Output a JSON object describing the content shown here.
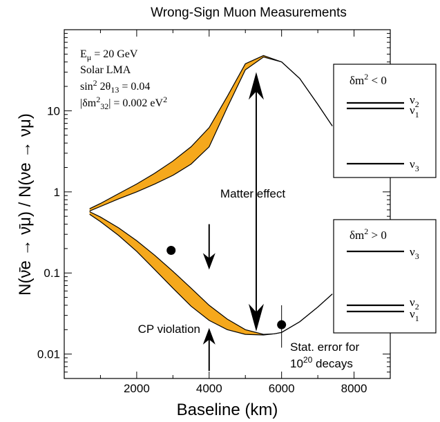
{
  "chart_data": {
    "type": "line",
    "title": "Wrong-Sign Muon Measurements",
    "xlabel": "Baseline  (km)",
    "ylabel": "N(ν̄e → ν̄μ) / N(νe → νμ)",
    "xlim": [
      0,
      9000
    ],
    "ylim": [
      0.005,
      100
    ],
    "y_scale": "log",
    "x_ticks": [
      "2000",
      "4000",
      "6000",
      "8000"
    ],
    "y_ticks": [
      "0.01",
      "0.1",
      "1",
      "10"
    ],
    "grid": false,
    "band_color": "#f5a81c",
    "series": [
      {
        "x": [
          700,
          1000,
          1500,
          2000,
          2500,
          3000,
          3500,
          4000,
          4500,
          5000,
          5500,
          6000,
          6500,
          7000,
          7400
        ],
        "values": [
          0.62,
          0.72,
          0.95,
          1.25,
          1.7,
          2.4,
          3.6,
          6.2,
          15,
          38,
          48,
          40,
          25,
          12,
          6.5
        ]
      },
      {
        "x": [
          700,
          1000,
          1500,
          2000,
          2500,
          3000,
          3500,
          4000,
          4500,
          5000,
          5500,
          6000,
          6500,
          7000,
          7400
        ],
        "values": [
          0.58,
          0.66,
          0.82,
          1.0,
          1.25,
          1.6,
          2.2,
          3.6,
          11,
          32,
          46,
          40,
          25,
          12,
          6.5
        ]
      },
      {
        "x": [
          700,
          1000,
          1500,
          2000,
          2500,
          3000,
          3500,
          4000,
          4500,
          5000,
          5500,
          5800,
          6000,
          6500,
          7000,
          7400
        ],
        "values": [
          0.57,
          0.49,
          0.36,
          0.25,
          0.165,
          0.105,
          0.065,
          0.04,
          0.027,
          0.02,
          0.0175,
          0.0178,
          0.0185,
          0.025,
          0.038,
          0.055
        ]
      },
      {
        "x": [
          700,
          1000,
          1500,
          2000,
          2500,
          3000,
          3500,
          4000,
          4500,
          5000,
          5500,
          5800,
          6000,
          6500,
          7000,
          7400
        ],
        "values": [
          0.53,
          0.43,
          0.29,
          0.185,
          0.11,
          0.065,
          0.039,
          0.026,
          0.02,
          0.0175,
          0.0172,
          0.0178,
          0.0185,
          0.025,
          0.038,
          0.055
        ]
      }
    ],
    "points": [
      {
        "x": 2950,
        "y": 0.19
      },
      {
        "x": 6000,
        "y": 0.023,
        "err_hi": 0.04,
        "err_lo": 0.012
      }
    ],
    "params": [
      "E",
      "μ",
      " = 20 GeV",
      "Solar LMA",
      "sin",
      "2",
      " 2θ",
      "13",
      " = 0.04",
      "|δm",
      "2",
      "32",
      "| = 0.002 eV",
      "2"
    ],
    "annotations": {
      "matter_effect": "Matter effect",
      "cp_violation": "CP violation",
      "stat_error_line1": "Stat. error for",
      "stat_error_line2_base": "10",
      "stat_error_line2_exp": "20",
      "stat_error_line2_rest": " decays"
    },
    "inset_negative": {
      "dm": "δm",
      "sup": "2",
      "rel": " < 0",
      "levels": [
        "ν",
        "2",
        "ν",
        "1",
        "ν",
        "3"
      ]
    },
    "inset_positive": {
      "dm": "δm",
      "sup": "2",
      "rel": " > 0",
      "levels": [
        "ν",
        "3",
        "ν",
        "2",
        "ν",
        "1"
      ]
    }
  }
}
